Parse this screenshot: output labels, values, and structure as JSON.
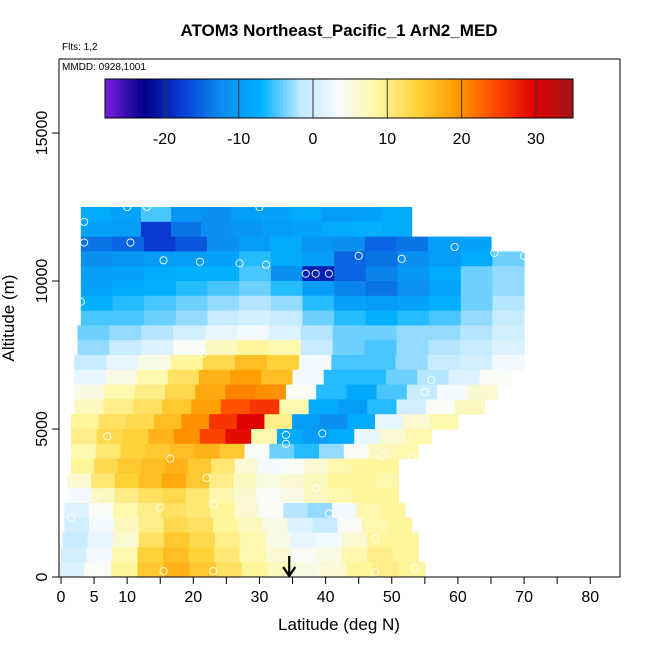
{
  "chart_data": {
    "type": "heatmap",
    "title": "ATOM3 Northeast_Pacific_1 ArN2_MED",
    "annotation_flights": "Flts: 1,2",
    "annotation_dates": "MMDD: 0928,1001",
    "xlabel": "Latitude (deg N)",
    "ylabel": "Altitude (m)",
    "xlim": [
      -0.3,
      84.5
    ],
    "ylim": [
      0,
      17500
    ],
    "xticks": [
      0,
      5,
      10,
      20,
      30,
      40,
      50,
      60,
      70,
      80
    ],
    "yticks": [
      0,
      5000,
      10000,
      15000
    ],
    "colorbar": {
      "range": [
        -28,
        35
      ],
      "ticks": [
        -20,
        -10,
        0,
        10,
        20,
        30
      ],
      "colors": [
        "#7a1fe0",
        "#00008b",
        "#0a3fd6",
        "#0a8ef0",
        "#00b0ff",
        "#bfe9ff",
        "#f7fbff",
        "#fff7a0",
        "#ffd23a",
        "#ff9c00",
        "#ff4a00",
        "#e00000",
        "#a01818"
      ],
      "placement": "top-inside"
    },
    "marker_arrow_latitude": 34.5,
    "grid": false,
    "bands": [
      {
        "alt": 12000,
        "lat0": 3,
        "lat1": 53,
        "v": [
          -8,
          -9,
          -5,
          -11,
          -12,
          -10,
          -9,
          -8,
          -10,
          -9,
          -8
        ]
      },
      {
        "alt": 11500,
        "lat0": 3,
        "lat1": 53,
        "v": [
          -9,
          -10,
          -18,
          -14,
          -12,
          -11,
          -10,
          -9,
          -8,
          -7,
          -8
        ]
      },
      {
        "alt": 11000,
        "lat0": 3,
        "lat1": 65,
        "v": [
          -14,
          -15,
          -18,
          -16,
          -12,
          -10,
          -8,
          -11,
          -12,
          -15,
          -14,
          -10,
          -9
        ]
      },
      {
        "alt": 10500,
        "lat0": 3,
        "lat1": 70,
        "v": [
          -12,
          -11,
          -10,
          -10,
          -9,
          -6,
          -8,
          -10,
          -15,
          -14,
          -12,
          -10,
          -8,
          -4
        ]
      },
      {
        "alt": 10000,
        "lat0": 3,
        "lat1": 70,
        "v": [
          -10,
          -9,
          -8,
          -7,
          -7,
          -5,
          -12,
          -20,
          -15,
          -13,
          -11,
          -8,
          -4,
          -3
        ]
      },
      {
        "alt": 9500,
        "lat0": 3,
        "lat1": 70,
        "v": [
          -9,
          -8,
          -7,
          -6,
          -5,
          -4,
          -6,
          -10,
          -13,
          -14,
          -12,
          -9,
          -4,
          -3
        ]
      },
      {
        "alt": 9000,
        "lat0": 3,
        "lat1": 70,
        "v": [
          -7,
          -6,
          -5,
          -4,
          -3,
          -2,
          -3,
          -6,
          -9,
          -10,
          -9,
          -7,
          -4,
          -2
        ]
      },
      {
        "alt": 8500,
        "lat0": 3,
        "lat1": 70,
        "v": [
          -5,
          -5,
          -4,
          -3,
          -1,
          0,
          -1,
          -4,
          -6,
          -7,
          -6,
          -5,
          -3,
          -1
        ]
      },
      {
        "alt": 8000,
        "lat0": 2.5,
        "lat1": 70,
        "v": [
          -4,
          -3,
          -2,
          0,
          2,
          3,
          1,
          -2,
          -4,
          -4,
          -3,
          -3,
          -2,
          0
        ]
      },
      {
        "alt": 7500,
        "lat0": 2.5,
        "lat1": 70,
        "v": [
          -3,
          -1,
          1,
          4,
          7,
          9,
          8,
          -1,
          -4,
          -5,
          -3,
          -2,
          -1,
          1
        ]
      },
      {
        "alt": 7000,
        "lat0": 2,
        "lat1": 70,
        "v": [
          -1,
          2,
          5,
          9,
          13,
          16,
          14,
          3,
          -5,
          -5,
          -3,
          -1,
          0,
          3
        ]
      },
      {
        "alt": 6500,
        "lat0": 2,
        "lat1": 68,
        "v": [
          2,
          5,
          8,
          12,
          17,
          19,
          16,
          3,
          -6,
          -6,
          -4,
          -2,
          1,
          4
        ]
      },
      {
        "alt": 6000,
        "lat0": 2,
        "lat1": 66,
        "v": [
          5,
          8,
          10,
          13,
          18,
          21,
          20,
          4,
          -6,
          -8,
          -5,
          -1,
          3,
          6
        ]
      },
      {
        "alt": 5500,
        "lat0": 2,
        "lat1": 64,
        "v": [
          7,
          10,
          12,
          15,
          19,
          24,
          26,
          8,
          -8,
          -10,
          -6,
          0,
          4,
          7
        ]
      },
      {
        "alt": 5000,
        "lat0": 1.5,
        "lat1": 60,
        "v": [
          9,
          12,
          13,
          16,
          20,
          26,
          30,
          10,
          -10,
          -12,
          -8,
          2,
          6,
          8
        ]
      },
      {
        "alt": 4500,
        "lat0": 1.5,
        "lat1": 56,
        "v": [
          10,
          13,
          14,
          17,
          20,
          25,
          29,
          8,
          -8,
          -10,
          -8,
          2,
          6,
          8
        ]
      },
      {
        "alt": 4000,
        "lat0": 1.5,
        "lat1": 54,
        "v": [
          8,
          11,
          14,
          15,
          16,
          17,
          15,
          4,
          -4,
          -6,
          -3,
          4,
          7,
          8
        ]
      },
      {
        "alt": 3500,
        "lat0": 1.5,
        "lat1": 51,
        "v": [
          9,
          13,
          15,
          16,
          17,
          15,
          11,
          6,
          3,
          4,
          6,
          8,
          9,
          9
        ]
      },
      {
        "alt": 3000,
        "lat0": 1.0,
        "lat1": 51,
        "v": [
          6,
          11,
          14,
          16,
          18,
          15,
          10,
          7,
          5,
          6,
          7,
          9,
          9,
          8
        ]
      },
      {
        "alt": 2500,
        "lat0": 1.0,
        "lat1": 51,
        "v": [
          3,
          7,
          10,
          12,
          13,
          11,
          8,
          6,
          4,
          5,
          7,
          8,
          9,
          9
        ]
      },
      {
        "alt": 2000,
        "lat0": 0.5,
        "lat1": 52,
        "v": [
          1,
          4,
          8,
          10,
          12,
          11,
          9,
          6,
          4,
          -2,
          -3,
          3,
          8,
          9
        ]
      },
      {
        "alt": 1500,
        "lat0": 0.5,
        "lat1": 53,
        "v": [
          0,
          3,
          7,
          10,
          13,
          12,
          9,
          7,
          5,
          1,
          -1,
          4,
          8,
          9
        ]
      },
      {
        "alt": 1000,
        "lat0": 0.2,
        "lat1": 54,
        "v": [
          -1,
          2,
          6,
          12,
          15,
          13,
          10,
          8,
          5,
          2,
          3,
          6,
          9,
          9
        ]
      },
      {
        "alt": 500,
        "lat0": 0,
        "lat1": 54,
        "v": [
          0,
          3,
          8,
          14,
          16,
          14,
          11,
          8,
          6,
          4,
          5,
          8,
          10,
          9
        ]
      },
      {
        "alt": 0,
        "lat0": -0.3,
        "lat1": 55,
        "v": [
          1,
          4,
          9,
          15,
          17,
          15,
          12,
          9,
          7,
          5,
          6,
          9,
          10,
          9
        ]
      }
    ],
    "points": [
      {
        "lat": 3.5,
        "alt": 12000
      },
      {
        "lat": 10,
        "alt": 12500
      },
      {
        "lat": 13,
        "alt": 12500
      },
      {
        "lat": 20,
        "alt": 12650
      },
      {
        "lat": 26,
        "alt": 12800
      },
      {
        "lat": 30,
        "alt": 12500
      },
      {
        "lat": 3.5,
        "alt": 11300
      },
      {
        "lat": 10.5,
        "alt": 11300
      },
      {
        "lat": 15.5,
        "alt": 10700
      },
      {
        "lat": 21,
        "alt": 10650
      },
      {
        "lat": 27,
        "alt": 10600
      },
      {
        "lat": 31,
        "alt": 10550
      },
      {
        "lat": 37,
        "alt": 10250
      },
      {
        "lat": 38.5,
        "alt": 10250
      },
      {
        "lat": 40.5,
        "alt": 10250
      },
      {
        "lat": 45,
        "alt": 10850
      },
      {
        "lat": 51.5,
        "alt": 10750
      },
      {
        "lat": 59.5,
        "alt": 11150
      },
      {
        "lat": 65.5,
        "alt": 10950
      },
      {
        "lat": 70,
        "alt": 10850
      },
      {
        "lat": 3,
        "alt": 9300
      },
      {
        "lat": 21.5,
        "alt": 7550
      },
      {
        "lat": 55,
        "alt": 6250
      },
      {
        "lat": 56,
        "alt": 6650
      },
      {
        "lat": 7,
        "alt": 4750
      },
      {
        "lat": 34,
        "alt": 4800
      },
      {
        "lat": 34,
        "alt": 4500
      },
      {
        "lat": 39.5,
        "alt": 4850
      },
      {
        "lat": 48.5,
        "alt": 4100
      },
      {
        "lat": 53,
        "alt": 4050
      },
      {
        "lat": 16.5,
        "alt": 4000
      },
      {
        "lat": 22,
        "alt": 3350
      },
      {
        "lat": 38.5,
        "alt": 3000
      },
      {
        "lat": 5,
        "alt": 2700
      },
      {
        "lat": 15,
        "alt": 2350
      },
      {
        "lat": 23,
        "alt": 2450
      },
      {
        "lat": 40.5,
        "alt": 2150
      },
      {
        "lat": 1.5,
        "alt": 2000
      },
      {
        "lat": 47.5,
        "alt": 1300
      },
      {
        "lat": 15.5,
        "alt": 200
      },
      {
        "lat": 23,
        "alt": 200
      },
      {
        "lat": 35,
        "alt": 200
      },
      {
        "lat": 39.5,
        "alt": 250
      },
      {
        "lat": 41.5,
        "alt": 350
      },
      {
        "lat": 47.5,
        "alt": 150
      },
      {
        "lat": 53.5,
        "alt": 300
      },
      {
        "lat": 6,
        "alt": 150
      },
      {
        "lat": 4,
        "alt": 200
      }
    ]
  }
}
